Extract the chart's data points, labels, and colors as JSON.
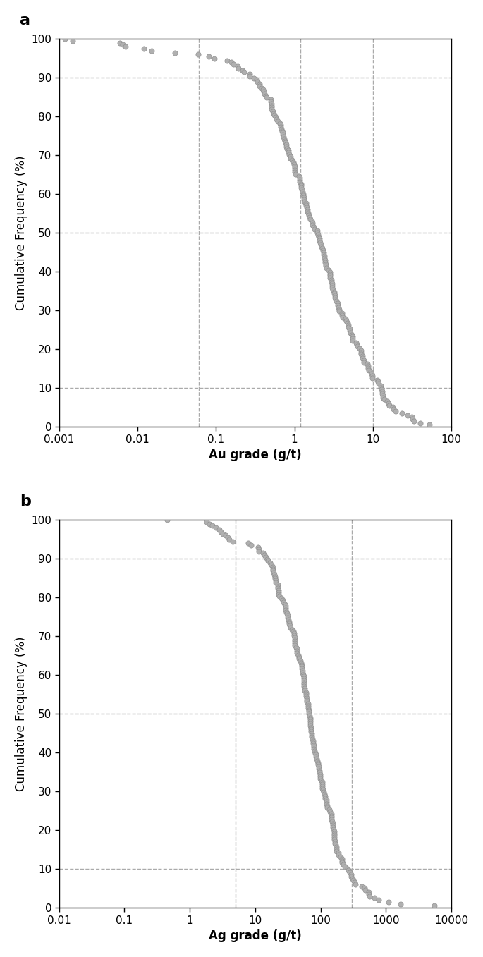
{
  "panel_a": {
    "label": "a",
    "xlabel": "Au grade (g/t)",
    "ylabel": "Cumulative Frequency (%)",
    "xmin": 0.001,
    "xmax": 100,
    "ylim": [
      0,
      100
    ],
    "yticks": [
      0,
      10,
      20,
      30,
      40,
      50,
      60,
      70,
      80,
      90,
      100
    ],
    "xticks": [
      0.001,
      0.01,
      0.1,
      1,
      10,
      100
    ],
    "xticklabels": [
      "0.001",
      "0.01",
      "0.1",
      "1",
      "10",
      "100"
    ],
    "hlines": [
      10,
      50,
      90
    ],
    "vlines": [
      0.06,
      1.2,
      10
    ],
    "marker_color": "#b0b0b0",
    "marker_edge": "#909090",
    "marker_size": 7
  },
  "panel_b": {
    "label": "b",
    "xlabel": "Ag grade (g/t)",
    "ylabel": "Cumulative Frequency (%)",
    "xmin": 0.01,
    "xmax": 10000,
    "ylim": [
      0,
      100
    ],
    "yticks": [
      0,
      10,
      20,
      30,
      40,
      50,
      60,
      70,
      80,
      90,
      100
    ],
    "xticks": [
      0.01,
      0.1,
      1,
      10,
      100,
      1000,
      10000
    ],
    "xticklabels": [
      "0.01",
      "0.1",
      "1",
      "10",
      "100",
      "1000",
      "10000"
    ],
    "hlines": [
      10,
      50,
      90
    ],
    "vlines": [
      5,
      300
    ],
    "marker_color": "#b0b0b0",
    "marker_edge": "#909090",
    "marker_size": 7
  },
  "figure_bgcolor": "#ffffff",
  "dashed_color": "#aaaaaa",
  "dashed_lw": 1.0,
  "label_fontsize": 16,
  "axis_label_fontsize": 12,
  "tick_fontsize": 11
}
